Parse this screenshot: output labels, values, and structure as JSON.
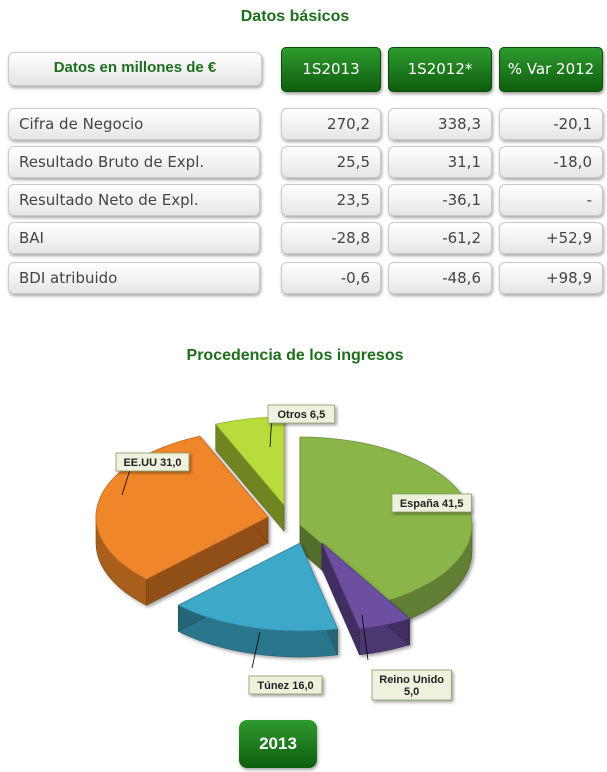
{
  "table": {
    "title": "Datos básicos",
    "header_label": "Datos en millones de €",
    "columns": [
      "1S2013",
      "1S2012*",
      "% Var 2012"
    ],
    "rows": [
      {
        "label": "Cifra de Negocio",
        "values": [
          "270,2",
          "338,3",
          "-20,1"
        ]
      },
      {
        "label": "Resultado Bruto de Expl.",
        "values": [
          "25,5",
          "31,1",
          "-18,0"
        ]
      },
      {
        "label": "Resultado Neto de Expl.",
        "values": [
          "23,5",
          "-36,1",
          "-"
        ]
      },
      {
        "label": "BAI",
        "values": [
          "-28,8",
          "-61,2",
          "+52,9"
        ]
      },
      {
        "label": "BDI atribuido",
        "values": [
          "-0,6",
          "-48,6",
          "+98,9"
        ]
      }
    ]
  },
  "chart_data": {
    "type": "pie",
    "title": "Procedencia de los ingresos",
    "three_d": true,
    "exploded": true,
    "slices": [
      {
        "label": "España",
        "value": 41.5,
        "display": "41,5",
        "color": "#8ab54a"
      },
      {
        "label": "Reino Unido",
        "value": 5.0,
        "display": "5,0",
        "color": "#6c4fa0"
      },
      {
        "label": "Túnez",
        "value": 16.0,
        "display": "16,0",
        "color": "#3ea8c8"
      },
      {
        "label": "EE.UU",
        "value": 31.0,
        "display": "31,0",
        "color": "#f0862a"
      },
      {
        "label": "Otros",
        "value": 6.5,
        "display": "6,5",
        "color": "#b9dc3c"
      }
    ],
    "year": "2013"
  }
}
